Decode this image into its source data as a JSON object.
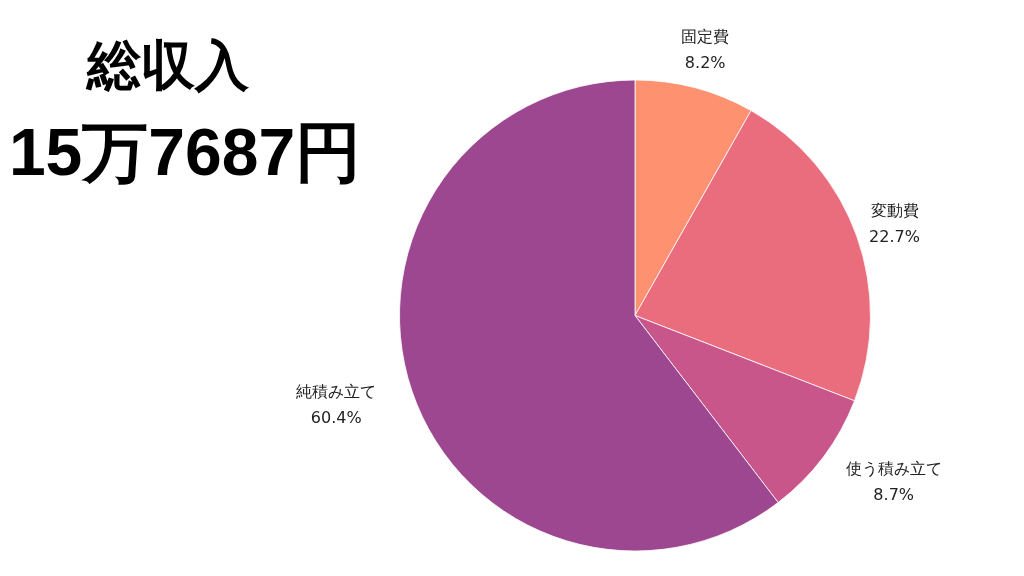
{
  "chart_data": {
    "type": "pie",
    "title": "総収入",
    "subtitle": "15万7687円",
    "categories": [
      "固定費",
      "変動費",
      "使う積み立て",
      "純積み立て"
    ],
    "values": [
      8.2,
      22.7,
      8.7,
      60.4
    ],
    "value_labels": [
      "8.2%",
      "22.7%",
      "8.7%",
      "60.4%"
    ],
    "colors": [
      "#fe9170",
      "#ea6d7e",
      "#c9568a",
      "#9d4791"
    ],
    "legend": false
  }
}
